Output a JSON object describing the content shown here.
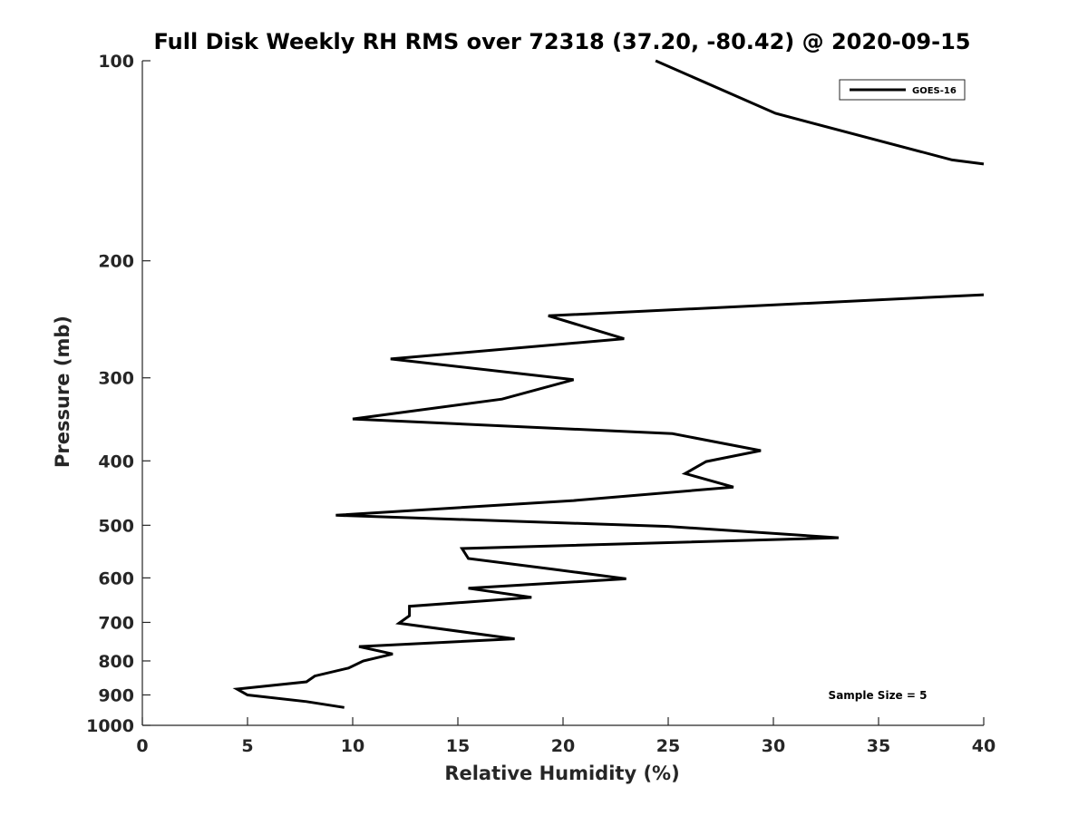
{
  "chart_data": {
    "type": "line",
    "title": "Full Disk Weekly RH RMS over 72318 (37.20, -80.42) @ 2020-09-15",
    "xlabel": "Relative Humidity (%)",
    "ylabel": "Pressure (mb)",
    "xlim": [
      0,
      40
    ],
    "ylim": [
      1000,
      100
    ],
    "yscale": "log",
    "x_ticks": [
      0,
      5,
      10,
      15,
      20,
      25,
      30,
      35,
      40
    ],
    "y_ticks": [
      100,
      200,
      300,
      400,
      500,
      600,
      700,
      800,
      900,
      1000
    ],
    "grid": false,
    "legend_position": "top-right",
    "annotation": "Sample Size = 5",
    "series": [
      {
        "name": "GOES-16",
        "color": "#000000",
        "segments": [
          [
            {
              "x": 24.4,
              "y": 100
            },
            {
              "x": 30.1,
              "y": 120
            },
            {
              "x": 38.5,
              "y": 141
            },
            {
              "x": 40.0,
              "y": 143
            }
          ],
          [
            {
              "x": 40.0,
              "y": 225
            },
            {
              "x": 19.3,
              "y": 242
            },
            {
              "x": 22.9,
              "y": 262
            },
            {
              "x": 11.8,
              "y": 281
            },
            {
              "x": 20.5,
              "y": 302
            },
            {
              "x": 17.1,
              "y": 323
            },
            {
              "x": 10.0,
              "y": 346
            },
            {
              "x": 25.2,
              "y": 364
            },
            {
              "x": 29.4,
              "y": 386
            },
            {
              "x": 26.8,
              "y": 401
            },
            {
              "x": 25.8,
              "y": 418
            },
            {
              "x": 28.1,
              "y": 438
            },
            {
              "x": 20.5,
              "y": 459
            },
            {
              "x": 9.2,
              "y": 483
            },
            {
              "x": 25.0,
              "y": 502
            },
            {
              "x": 33.1,
              "y": 522
            },
            {
              "x": 15.2,
              "y": 542
            },
            {
              "x": 15.5,
              "y": 561
            },
            {
              "x": 19.5,
              "y": 582
            },
            {
              "x": 23.0,
              "y": 602
            },
            {
              "x": 15.5,
              "y": 622
            },
            {
              "x": 18.5,
              "y": 642
            },
            {
              "x": 12.7,
              "y": 662
            },
            {
              "x": 12.7,
              "y": 684
            },
            {
              "x": 12.2,
              "y": 702
            },
            {
              "x": 17.7,
              "y": 741
            },
            {
              "x": 10.3,
              "y": 761
            },
            {
              "x": 11.9,
              "y": 781
            },
            {
              "x": 10.5,
              "y": 800
            },
            {
              "x": 9.8,
              "y": 820
            },
            {
              "x": 8.2,
              "y": 843
            },
            {
              "x": 7.8,
              "y": 860
            },
            {
              "x": 4.5,
              "y": 882
            },
            {
              "x": 5.0,
              "y": 900
            },
            {
              "x": 7.8,
              "y": 921
            },
            {
              "x": 9.6,
              "y": 940
            }
          ]
        ]
      }
    ]
  }
}
